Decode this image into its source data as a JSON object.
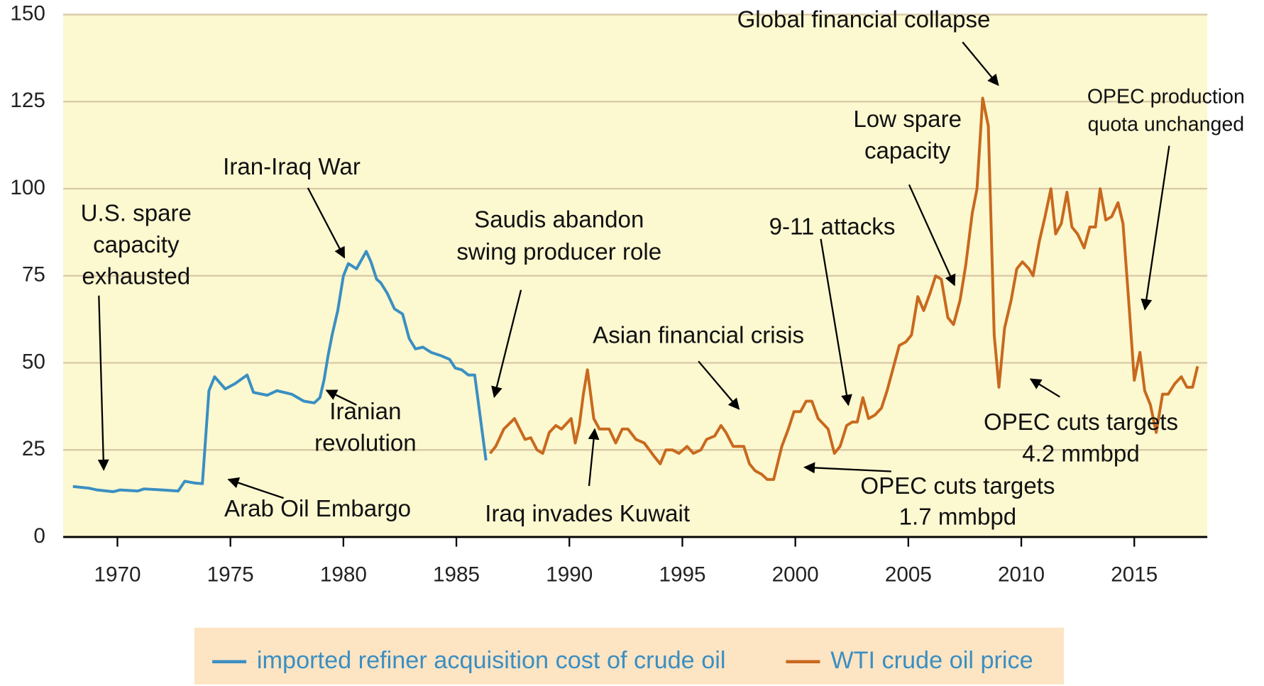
{
  "chart_data": {
    "type": "line",
    "xlim": [
      1967.6,
      2018.23
    ],
    "xticks": [
      1970,
      1975,
      1980,
      1985,
      1990,
      1995,
      2000,
      2005,
      2010,
      2015
    ],
    "ylim": [
      0,
      150
    ],
    "yticks": [
      0,
      25,
      50,
      75,
      100,
      125,
      150
    ],
    "grid": true,
    "legend": "bottom",
    "series": [
      {
        "name": "imported refiner acquisition cost of crude oil",
        "color": "#3a8fc2",
        "x": [
          1968.03,
          1968.75,
          1969.1,
          1969.82,
          1970.11,
          1970.9,
          1971.18,
          1971.97,
          1972.69,
          1972.98,
          1973.41,
          1973.76,
          1974.05,
          1974.3,
          1974.77,
          1975.2,
          1975.74,
          1976.02,
          1976.63,
          1977.06,
          1977.71,
          1978.25,
          1978.71,
          1978.96,
          1979.14,
          1979.32,
          1979.5,
          1979.75,
          1980.0,
          1980.22,
          1980.58,
          1981.01,
          1981.22,
          1981.47,
          1981.65,
          1981.94,
          1982.26,
          1982.62,
          1982.91,
          1983.19,
          1983.52,
          1983.88,
          1984.34,
          1984.7,
          1984.95,
          1985.24,
          1985.53,
          1985.81,
          1986.31
        ],
        "values": [
          14.5,
          14,
          13.5,
          13,
          13.5,
          13.2,
          13.8,
          13.5,
          13.2,
          16,
          15.5,
          15.3,
          42,
          46,
          42.5,
          44,
          46.5,
          41.5,
          40.7,
          42,
          41,
          39,
          38.5,
          40,
          45,
          52,
          58,
          65,
          75,
          78.5,
          77,
          82,
          79,
          74,
          73,
          70,
          65.5,
          64,
          57,
          54,
          54.5,
          53,
          52,
          51,
          48.5,
          48,
          46.5,
          46.5,
          22
        ]
      },
      {
        "name": "WTI crude oil price",
        "color": "#c8691e",
        "x": [
          1986.49,
          1986.74,
          1987.1,
          1987.57,
          1988.04,
          1988.29,
          1988.57,
          1988.82,
          1989.11,
          1989.4,
          1989.65,
          1990.08,
          1990.26,
          1990.44,
          1990.62,
          1990.8,
          1991.08,
          1991.33,
          1991.76,
          1992.05,
          1992.34,
          1992.59,
          1992.95,
          1993.31,
          1993.77,
          1994.02,
          1994.27,
          1994.56,
          1994.85,
          1995.21,
          1995.49,
          1995.82,
          1996.07,
          1996.43,
          1996.71,
          1996.93,
          1997.25,
          1997.72,
          1997.97,
          1998.22,
          1998.51,
          1998.76,
          1999.04,
          1999.4,
          1999.69,
          1999.94,
          2000.23,
          2000.48,
          2000.73,
          2001.01,
          2001.45,
          2001.73,
          2001.98,
          2002.27,
          2002.52,
          2002.74,
          2002.99,
          2003.24,
          2003.52,
          2003.81,
          2004.06,
          2004.35,
          2004.6,
          2004.89,
          2005.14,
          2005.42,
          2005.68,
          2005.96,
          2006.21,
          2006.46,
          2006.75,
          2007.0,
          2007.29,
          2007.54,
          2007.83,
          2008.04,
          2008.29,
          2008.54,
          2008.8,
          2009.01,
          2009.26,
          2009.55,
          2009.8,
          2010.05,
          2010.34,
          2010.52,
          2010.8,
          2011.05,
          2011.31,
          2011.52,
          2011.77,
          2012.02,
          2012.24,
          2012.49,
          2012.78,
          2013.03,
          2013.28,
          2013.49,
          2013.74,
          2014.0,
          2014.28,
          2014.5,
          2014.75,
          2015.0,
          2015.25,
          2015.46,
          2015.71,
          2015.97,
          2016.25,
          2016.5,
          2016.79,
          2017.08,
          2017.33,
          2017.58,
          2017.8
        ],
        "values": [
          24,
          26,
          31,
          34,
          28,
          28.5,
          25,
          24,
          30,
          32,
          31,
          34,
          27,
          32,
          41,
          48,
          34,
          31,
          31,
          27,
          31,
          31,
          28,
          27,
          23,
          21,
          25,
          25,
          24,
          26,
          24,
          25,
          28,
          29,
          32,
          30,
          26,
          26,
          21,
          19,
          18,
          16.5,
          16.5,
          26,
          31,
          36,
          36,
          39,
          39,
          34,
          31,
          24,
          26,
          32,
          33,
          33,
          40,
          34,
          35,
          37,
          42,
          49,
          55,
          56,
          58,
          69,
          65,
          70,
          75,
          74,
          63,
          61,
          68,
          78,
          93,
          100,
          126,
          118,
          58,
          43,
          60,
          68,
          77,
          79,
          77,
          75,
          85,
          92,
          100,
          87,
          90,
          99,
          89,
          87,
          83,
          89,
          89,
          100,
          91,
          92,
          96,
          90,
          68,
          45,
          53,
          42,
          38,
          30,
          41,
          41,
          44,
          46,
          43,
          43,
          49
        ]
      }
    ],
    "annotations": [
      {
        "lines": [
          "U.S. spare",
          "capacity",
          "exhausted"
        ]
      },
      {
        "lines": [
          "Iran-Iraq War"
        ]
      },
      {
        "lines": [
          "Iranian",
          "revolution"
        ]
      },
      {
        "lines": [
          "Arab Oil Embargo"
        ]
      },
      {
        "lines": [
          "Saudis abandon",
          "swing producer role"
        ]
      },
      {
        "lines": [
          "Asian financial crisis"
        ]
      },
      {
        "lines": [
          "Iraq invades Kuwait"
        ]
      },
      {
        "lines": [
          "9-11 attacks"
        ]
      },
      {
        "lines": [
          "Low spare",
          "capacity"
        ]
      },
      {
        "lines": [
          "Global financial collapse"
        ]
      },
      {
        "lines": [
          "OPEC production",
          "quota unchanged"
        ]
      },
      {
        "lines": [
          "OPEC cuts targets",
          "4.2 mmbpd"
        ]
      },
      {
        "lines": [
          "OPEC cuts targets",
          "1.7 mmbpd"
        ]
      }
    ]
  }
}
